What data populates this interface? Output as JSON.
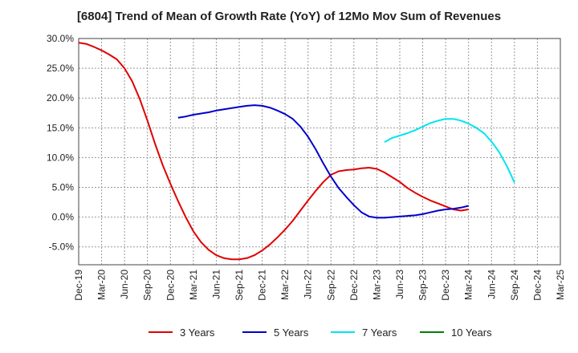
{
  "chart_data": {
    "type": "line",
    "title": "[6804]  Trend of Mean of Growth Rate (YoY) of 12Mo Mov Sum of Revenues",
    "xlabel": "",
    "ylabel": "",
    "ylim": [
      -8.0,
      30.0
    ],
    "y_ticks": [
      30.0,
      25.0,
      20.0,
      15.0,
      10.0,
      5.0,
      0.0,
      -5.0
    ],
    "y_tick_labels": [
      "30.0%",
      "25.0%",
      "20.0%",
      "15.0%",
      "10.0%",
      "5.0%",
      "0.0%",
      "-5.0%"
    ],
    "x_tick_labels": [
      "Dec-19",
      "Mar-20",
      "Jun-20",
      "Sep-20",
      "Dec-20",
      "Mar-21",
      "Jun-21",
      "Sep-21",
      "Dec-21",
      "Mar-22",
      "Jun-22",
      "Sep-22",
      "Dec-22",
      "Mar-23",
      "Jun-23",
      "Sep-23",
      "Dec-23",
      "Mar-24",
      "Jun-24",
      "Sep-24",
      "Dec-24",
      "Mar-25"
    ],
    "grid": true,
    "legend_position": "bottom",
    "series": [
      {
        "name": "3 Years",
        "color": "#e00000",
        "values": [
          29.3,
          29.1,
          28.6,
          28.0,
          27.3,
          26.5,
          25.0,
          22.8,
          19.8,
          16.2,
          12.3,
          8.7,
          5.6,
          2.7,
          0.0,
          -2.4,
          -4.2,
          -5.5,
          -6.4,
          -6.9,
          -7.1,
          -7.1,
          -6.9,
          -6.4,
          -5.6,
          -4.6,
          -3.4,
          -2.1,
          -0.6,
          1.1,
          2.8,
          4.4,
          5.9,
          7.1,
          7.7,
          7.9,
          8.0,
          8.2,
          8.3,
          8.1,
          7.5,
          6.7,
          5.9,
          4.9,
          4.1,
          3.4,
          2.8,
          2.3,
          1.8,
          1.3,
          1.1,
          1.3
        ],
        "start_index": 0
      },
      {
        "name": "5 Years",
        "color": "#0000cc",
        "values": [
          16.7,
          16.9,
          17.2,
          17.4,
          17.6,
          17.9,
          18.1,
          18.3,
          18.5,
          18.7,
          18.8,
          18.7,
          18.4,
          17.9,
          17.3,
          16.5,
          15.2,
          13.5,
          11.4,
          9.0,
          6.8,
          4.9,
          3.4,
          2.0,
          0.8,
          0.1,
          -0.1,
          -0.1,
          0.0,
          0.1,
          0.2,
          0.3,
          0.5,
          0.8,
          1.1,
          1.3,
          1.4,
          1.6,
          1.9
        ],
        "start_index": 13
      },
      {
        "name": "7 Years",
        "color": "#00e5ee",
        "values": [
          12.6,
          13.3,
          13.7,
          14.1,
          14.6,
          15.2,
          15.8,
          16.2,
          16.5,
          16.5,
          16.2,
          15.7,
          15.0,
          14.1,
          12.7,
          10.9,
          8.6,
          5.8
        ],
        "start_index": 40
      },
      {
        "name": "10 Years",
        "color": "#008000",
        "values": [],
        "start_index": 0
      }
    ]
  }
}
